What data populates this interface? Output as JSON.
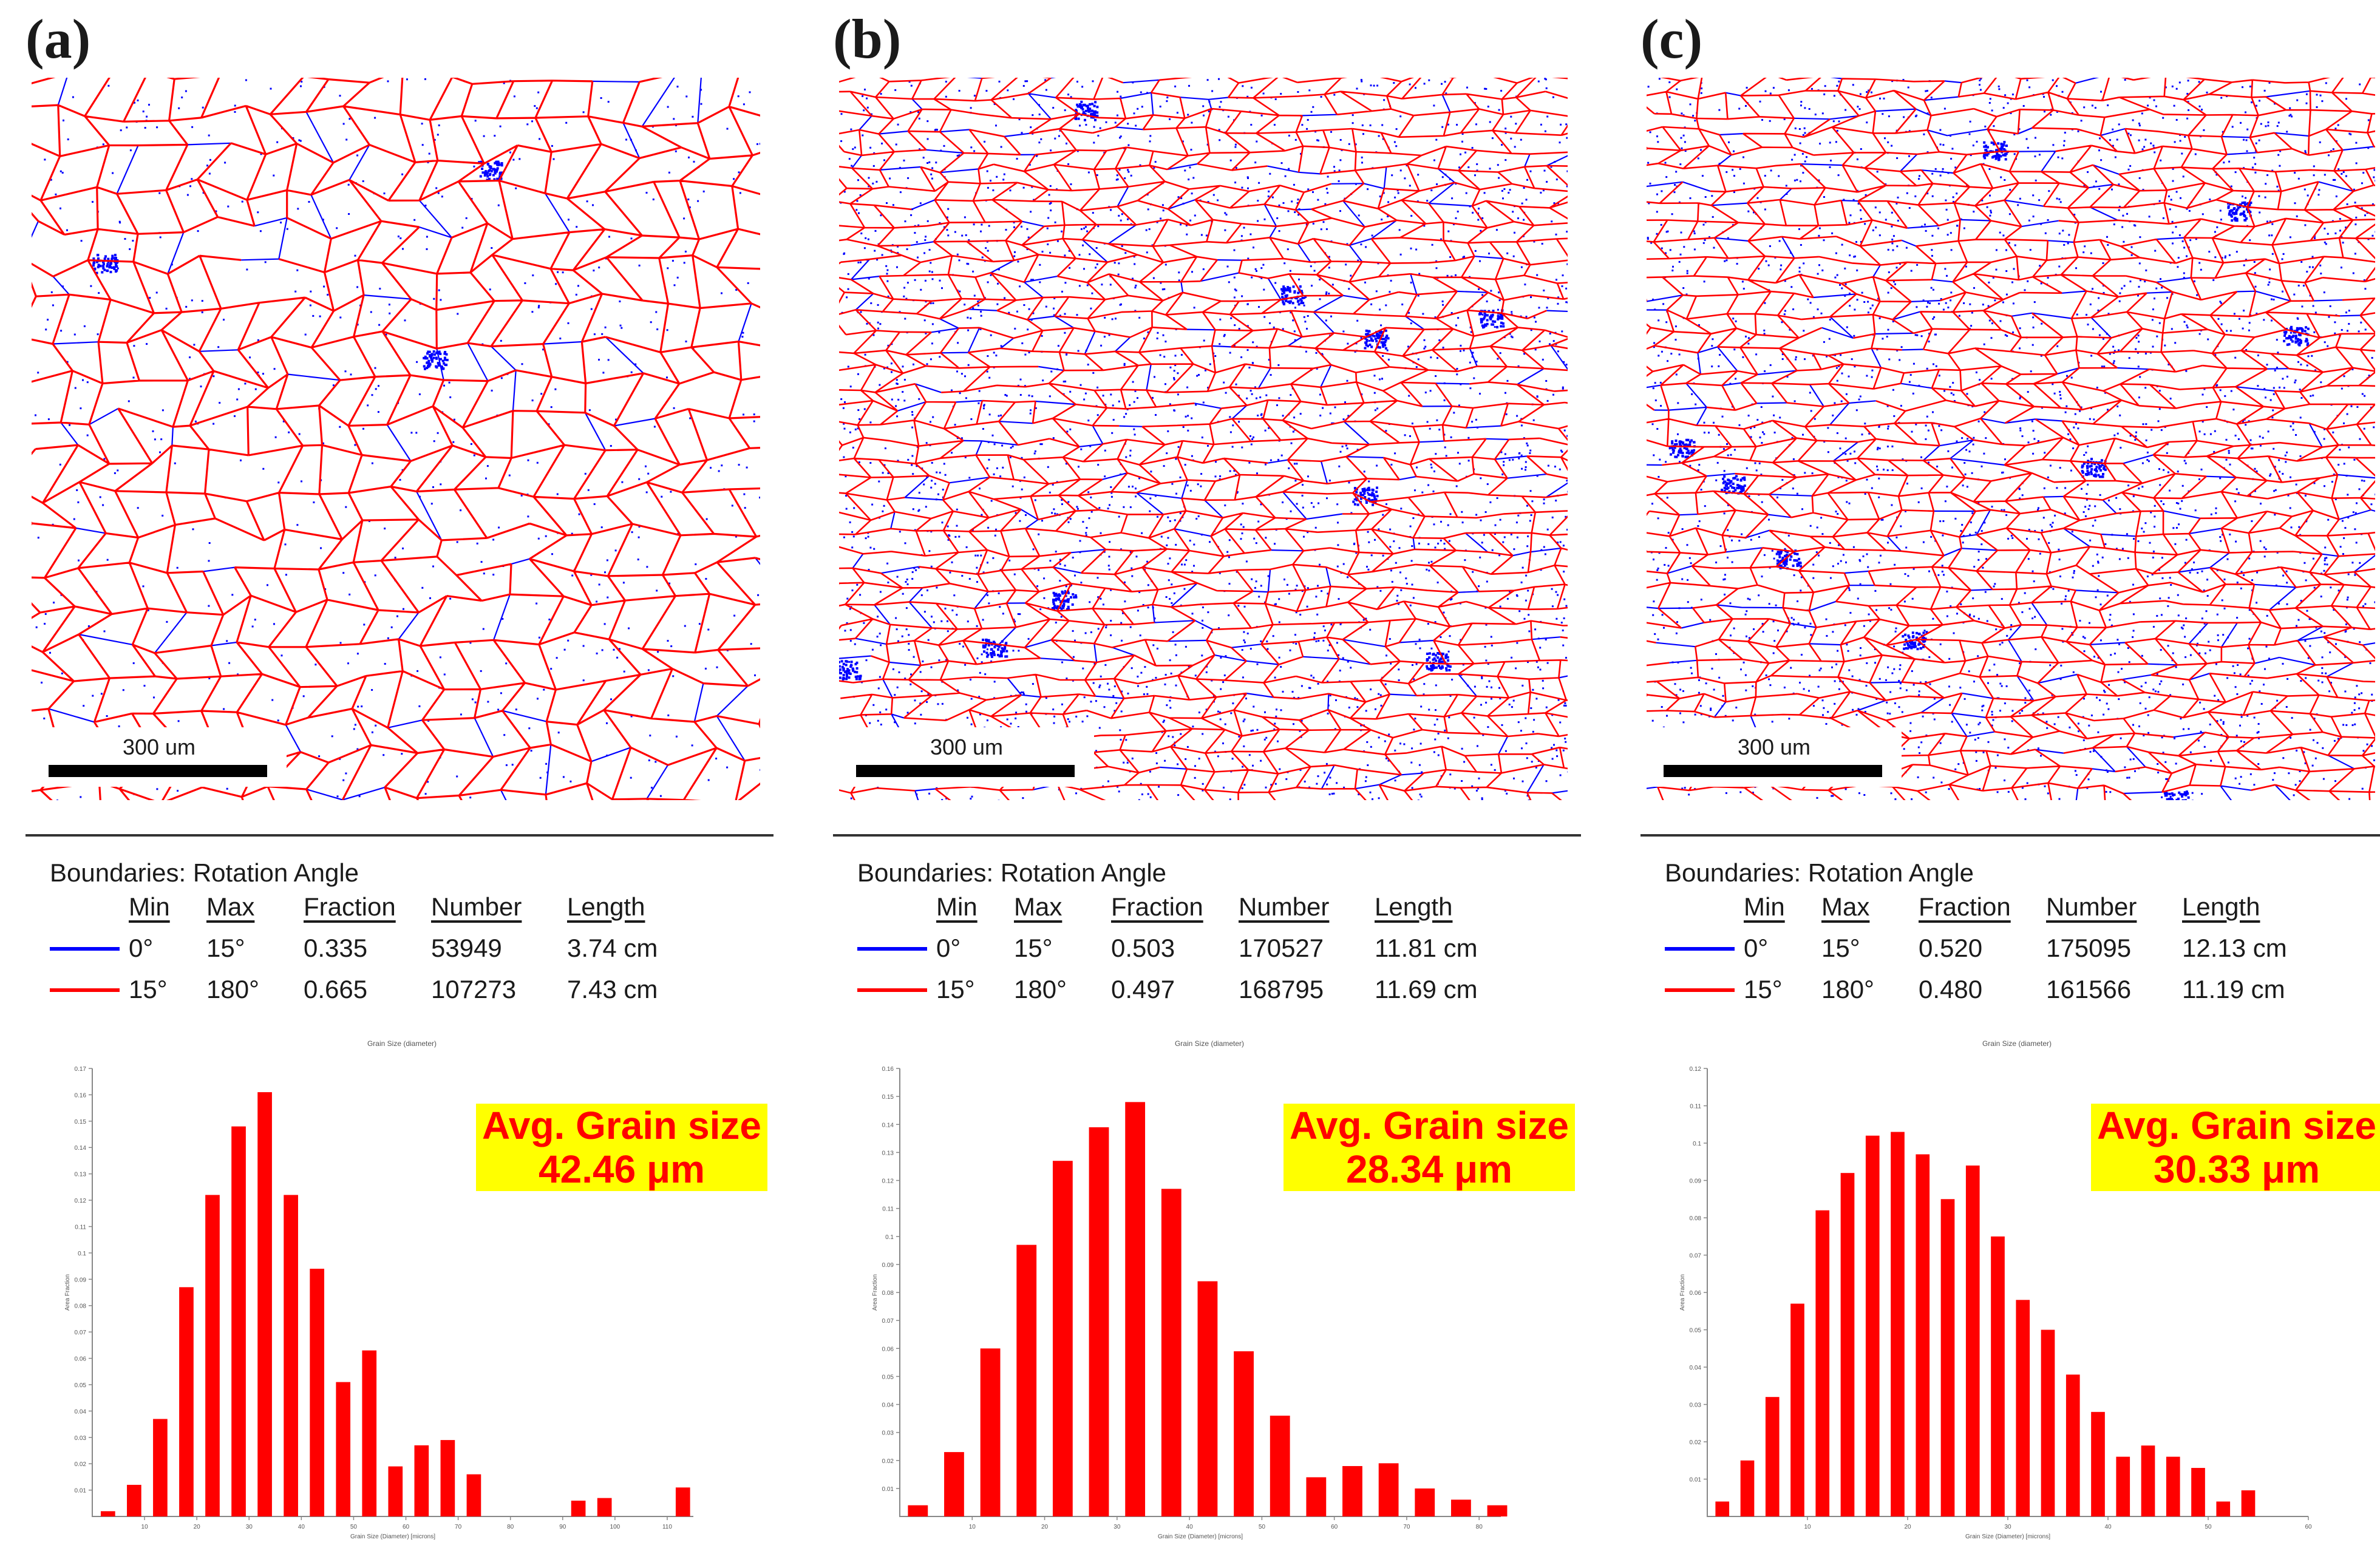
{
  "panels": [
    {
      "letter": "(a)",
      "scale_bar": "300 um",
      "legend": {
        "title": "Boundaries: Rotation Angle",
        "headers": [
          "Min",
          "Max",
          "Fraction",
          "Number",
          "Length"
        ],
        "rows": [
          {
            "color": "#0000ff",
            "min": "0°",
            "max": "15°",
            "fraction": "0.335",
            "number": "53949",
            "length": "3.74 cm"
          },
          {
            "color": "#ff0000",
            "min": "15°",
            "max": "180°",
            "fraction": "0.665",
            "number": "107273",
            "length": "7.43 cm"
          }
        ]
      },
      "avg_grain": {
        "label": "Avg. Grain  size",
        "value": "42.46  μm"
      }
    },
    {
      "letter": "(b)",
      "scale_bar": "300 um",
      "legend": {
        "title": "Boundaries: Rotation Angle",
        "headers": [
          "Min",
          "Max",
          "Fraction",
          "Number",
          "Length"
        ],
        "rows": [
          {
            "color": "#0000ff",
            "min": "0°",
            "max": "15°",
            "fraction": "0.503",
            "number": "170527",
            "length": "11.81 cm"
          },
          {
            "color": "#ff0000",
            "min": "15°",
            "max": "180°",
            "fraction": "0.497",
            "number": "168795",
            "length": "11.69 cm"
          }
        ]
      },
      "avg_grain": {
        "label": "Avg. Grain  size",
        "value": "28.34  μm"
      }
    },
    {
      "letter": "(c)",
      "scale_bar": "300 um",
      "legend": {
        "title": "Boundaries: Rotation Angle",
        "headers": [
          "Min",
          "Max",
          "Fraction",
          "Number",
          "Length"
        ],
        "rows": [
          {
            "color": "#0000ff",
            "min": "0°",
            "max": "15°",
            "fraction": "0.520",
            "number": "175095",
            "length": "12.13 cm"
          },
          {
            "color": "#ff0000",
            "min": "15°",
            "max": "180°",
            "fraction": "0.480",
            "number": "161566",
            "length": "11.19 cm"
          }
        ]
      },
      "avg_grain": {
        "label": "Avg. Grain  size",
        "value": "30.33  μm"
      }
    }
  ],
  "colors": {
    "bar": "#ff0000",
    "low_angle": "#0000ff",
    "high_angle": "#ff0000",
    "highlight": "#ffff00"
  },
  "chart_data": [
    {
      "type": "bar",
      "title": "Grain Size (diameter)",
      "xlabel": "Grain Size (Diameter) [microns]",
      "ylabel": "Area Fraction",
      "x": [
        3,
        8,
        13,
        18,
        23,
        28,
        33,
        38,
        43,
        48,
        53,
        58,
        63,
        68,
        73,
        78,
        83,
        88,
        93,
        98,
        103,
        108,
        113
      ],
      "values": [
        0.002,
        0.012,
        0.037,
        0.087,
        0.122,
        0.148,
        0.161,
        0.122,
        0.094,
        0.051,
        0.063,
        0.019,
        0.027,
        0.029,
        0.016,
        0,
        0,
        0,
        0.006,
        0.007,
        0,
        0,
        0.011
      ],
      "xlim": [
        0,
        115
      ],
      "ylim": [
        0,
        0.17
      ],
      "xticks": [
        10,
        20,
        30,
        40,
        50,
        60,
        70,
        80,
        90,
        100,
        110
      ],
      "yticks": [
        0.01,
        0.02,
        0.03,
        0.04,
        0.05,
        0.06,
        0.07,
        0.08,
        0.09,
        0.1,
        0.11,
        0.12,
        0.13,
        0.14,
        0.15,
        0.16,
        0.17
      ]
    },
    {
      "type": "bar",
      "title": "Grain Size (diameter)",
      "xlabel": "Grain Size (Diameter) [microns]",
      "ylabel": "Area Fraction",
      "x": [
        2.5,
        7.5,
        12.5,
        17.5,
        22.5,
        27.5,
        32.5,
        37.5,
        42.5,
        47.5,
        52.5,
        57.5,
        62.5,
        67.5,
        72.5,
        77.5,
        82.5
      ],
      "values": [
        0.004,
        0.023,
        0.06,
        0.097,
        0.127,
        0.139,
        0.148,
        0.117,
        0.084,
        0.059,
        0.036,
        0.014,
        0.018,
        0.019,
        0.01,
        0.006,
        0.004
      ],
      "extra": [],
      "xlim": [
        0,
        83
      ],
      "ylim": [
        0,
        0.16
      ],
      "xticks": [
        10,
        20,
        30,
        40,
        50,
        60,
        70,
        80
      ],
      "yticks": [
        0.01,
        0.02,
        0.03,
        0.04,
        0.05,
        0.06,
        0.07,
        0.08,
        0.09,
        0.1,
        0.11,
        0.12,
        0.13,
        0.14,
        0.15,
        0.16
      ]
    },
    {
      "type": "bar",
      "title": "Grain Size (diameter)",
      "xlabel": "Grain Size (Diameter) [microns]",
      "ylabel": "Area Fraction",
      "x": [
        1.5,
        4,
        6.5,
        9,
        11.5,
        14,
        16.5,
        19,
        21.5,
        24,
        26.5,
        29,
        31.5,
        34,
        36.5,
        39,
        41.5,
        44,
        46.5,
        49,
        51.5,
        54,
        56.5,
        59
      ],
      "values": [
        0.004,
        0.015,
        0.032,
        0.057,
        0.082,
        0.092,
        0.102,
        0.103,
        0.097,
        0.085,
        0.094,
        0.075,
        0.058,
        0.05,
        0.038,
        0.028,
        0.016,
        0.019,
        0.016,
        0.013,
        0.004,
        0.007,
        0.0,
        0.0
      ],
      "xlim": [
        0,
        60
      ],
      "ylim": [
        0,
        0.12
      ],
      "xticks": [
        10,
        20,
        30,
        40,
        50,
        60
      ],
      "yticks": [
        0.01,
        0.02,
        0.03,
        0.04,
        0.05,
        0.06,
        0.07,
        0.08,
        0.09,
        0.1,
        0.11,
        0.12
      ]
    }
  ]
}
